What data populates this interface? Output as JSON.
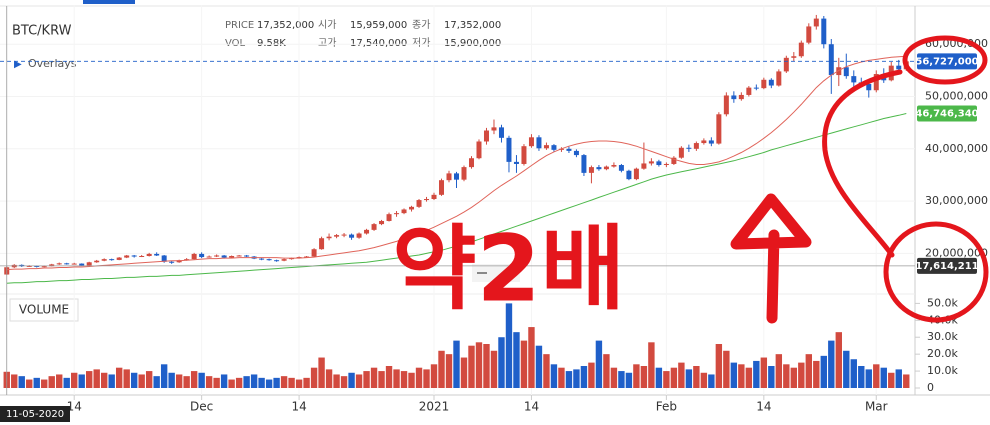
{
  "chart_data": {
    "type": "candlestick",
    "title": "BTC/KRW",
    "info": [
      {
        "label": "PRICE",
        "value": "17,352,000"
      },
      {
        "label": "시가",
        "value": "15,959,000"
      },
      {
        "label": "종가",
        "value": "17,352,000"
      },
      {
        "label": "VOL",
        "value": "9.58K"
      },
      {
        "label": "고가",
        "value": "17,540,000"
      },
      {
        "label": "저가",
        "value": "15,900,000"
      }
    ],
    "overlays_label": "Overlays",
    "volume_label": "VOLUME",
    "annotation": "약2배",
    "up_color": "#d24a3f",
    "down_color": "#1f5fc9",
    "grid": true,
    "categories": [
      null,
      null,
      null,
      null,
      null,
      null,
      null,
      null,
      null,
      "14",
      null,
      null,
      null,
      null,
      null,
      null,
      null,
      null,
      null,
      null,
      null,
      null,
      null,
      null,
      null,
      null,
      "Dec",
      null,
      null,
      null,
      null,
      null,
      null,
      null,
      null,
      null,
      null,
      null,
      null,
      "14",
      null,
      null,
      null,
      null,
      null,
      null,
      null,
      null,
      null,
      null,
      null,
      null,
      null,
      null,
      null,
      null,
      null,
      "2021",
      null,
      null,
      null,
      null,
      null,
      null,
      null,
      null,
      null,
      null,
      null,
      null,
      "14",
      null,
      null,
      null,
      null,
      null,
      null,
      null,
      null,
      null,
      null,
      null,
      null,
      null,
      null,
      null,
      null,
      null,
      "Feb",
      null,
      null,
      null,
      null,
      null,
      null,
      null,
      null,
      null,
      null,
      null,
      null,
      "14",
      null,
      null,
      null,
      null,
      null,
      null,
      null,
      null,
      null,
      null,
      null,
      null,
      null,
      null,
      "Mar",
      null,
      null,
      null,
      null
    ],
    "open": [
      15959000,
      17350000,
      17800000,
      17550000,
      17600000,
      17450000,
      17550000,
      17900000,
      18100000,
      18000000,
      18050000,
      17700000,
      18300000,
      18600000,
      18900000,
      18750000,
      19200000,
      19600000,
      19400000,
      19500000,
      19900000,
      19600000,
      18400000,
      18300000,
      18700000,
      18900000,
      19900000,
      19300000,
      19400000,
      19600000,
      19200000,
      19500000,
      19600000,
      19400000,
      19000000,
      18900000,
      18700000,
      18600000,
      18900000,
      19100000,
      19300000,
      19400000,
      20800000,
      22900000,
      23200000,
      23500000,
      23600000,
      23000000,
      23800000,
      24500000,
      25600000,
      26200000,
      27500000,
      27700000,
      28400000,
      28900000,
      30200000,
      30400000,
      31200000,
      34000000,
      35300000,
      34100000,
      36500000,
      38200000,
      41400000,
      43500000,
      44100000,
      42100000,
      37500000,
      37100000,
      40500000,
      42200000,
      40100000,
      40700000,
      39800000,
      40000000,
      39600000,
      38800000,
      35400000,
      36500000,
      36100000,
      36600000,
      36900000,
      35800000,
      34200000,
      36200000,
      37200000,
      37600000,
      36900000,
      37100000,
      38300000,
      40200000,
      40000000,
      41100000,
      41600000,
      41000000,
      46600000,
      50200000,
      49500000,
      50300000,
      51700000,
      51600000,
      53200000,
      52100000,
      54800000,
      57400000,
      57700000,
      60300000,
      63400000,
      64900000,
      60000000,
      54100000,
      55600000,
      53900000,
      52700000,
      52400000,
      51200000,
      54300000,
      53100000,
      55900000,
      55200000
    ],
    "high": [
      17540000,
      17950000,
      17900000,
      17750000,
      17700000,
      17700000,
      18000000,
      18250000,
      18200000,
      18200000,
      18100000,
      18400000,
      18750000,
      19050000,
      19000000,
      19300000,
      19700000,
      19700000,
      19700000,
      20100000,
      20200000,
      19700000,
      18600000,
      18800000,
      19100000,
      20100000,
      20200000,
      19600000,
      19800000,
      19700000,
      19600000,
      19700000,
      19700000,
      19500000,
      19100000,
      19000000,
      18800000,
      19000000,
      19200000,
      19400000,
      19500000,
      21000000,
      23200000,
      23800000,
      23700000,
      23900000,
      23800000,
      24000000,
      24700000,
      25800000,
      26400000,
      27800000,
      28100000,
      28600000,
      29100000,
      30400000,
      30800000,
      31600000,
      34300000,
      35800000,
      35600000,
      36800000,
      38600000,
      41800000,
      44000000,
      45600000,
      44600000,
      42500000,
      38800000,
      40900000,
      42800000,
      42600000,
      41200000,
      40900000,
      40300000,
      40400000,
      39900000,
      39000000,
      36800000,
      36900000,
      36800000,
      37400000,
      37100000,
      36000000,
      36400000,
      41200000,
      38200000,
      37900000,
      37400000,
      38600000,
      40500000,
      40800000,
      41400000,
      42000000,
      42200000,
      47000000,
      50800000,
      51000000,
      50800000,
      52000000,
      52300000,
      53600000,
      53500000,
      55200000,
      57800000,
      58500000,
      60700000,
      64000000,
      65600000,
      65400000,
      61000000,
      57400000,
      58200000,
      55000000,
      53600000,
      53000000,
      55000000,
      55400000,
      56600000,
      57000000,
      57100000
    ],
    "low": [
      15900000,
      17200000,
      17400000,
      17400000,
      17300000,
      17350000,
      17500000,
      17800000,
      17850000,
      17900000,
      17600000,
      17650000,
      18200000,
      18500000,
      18600000,
      18700000,
      19100000,
      19200000,
      19300000,
      19400000,
      19500000,
      18200000,
      18000000,
      18200000,
      18600000,
      18800000,
      19100000,
      19200000,
      19300000,
      19000000,
      19100000,
      19400000,
      19300000,
      18900000,
      18700000,
      18600000,
      18400000,
      18500000,
      18800000,
      19000000,
      19200000,
      19300000,
      20700000,
      22500000,
      22900000,
      23100000,
      22600000,
      22800000,
      23600000,
      24300000,
      25400000,
      26100000,
      27000000,
      27500000,
      28000000,
      28700000,
      29900000,
      30200000,
      31000000,
      33600000,
      32500000,
      33800000,
      36200000,
      38000000,
      40800000,
      42800000,
      41200000,
      35500000,
      35400000,
      36800000,
      40200000,
      39600000,
      39800000,
      39400000,
      39400000,
      39200000,
      38400000,
      34800000,
      33400000,
      35800000,
      35900000,
      36400000,
      35500000,
      34000000,
      34000000,
      36000000,
      36800000,
      36600000,
      36500000,
      36900000,
      38100000,
      39400000,
      39600000,
      40800000,
      40500000,
      40800000,
      46200000,
      48800000,
      49200000,
      50000000,
      51200000,
      51400000,
      51600000,
      51900000,
      54500000,
      56800000,
      57400000,
      60000000,
      62800000,
      59200000,
      50500000,
      52000000,
      53400000,
      51600000,
      51800000,
      49800000,
      50800000,
      52600000,
      52900000,
      54800000,
      54900000
    ],
    "close": [
      17352000,
      17800000,
      17550000,
      17600000,
      17450000,
      17550000,
      17900000,
      18100000,
      18000000,
      18050000,
      17700000,
      18300000,
      18600000,
      18900000,
      18750000,
      19200000,
      19600000,
      19400000,
      19500000,
      19900000,
      19600000,
      18400000,
      18300000,
      18700000,
      18900000,
      19900000,
      19300000,
      19400000,
      19600000,
      19200000,
      19500000,
      19600000,
      19400000,
      19000000,
      18900000,
      18700000,
      18600000,
      18900000,
      19100000,
      19300000,
      19400000,
      20800000,
      22900000,
      23200000,
      23500000,
      23600000,
      23000000,
      23800000,
      24500000,
      25600000,
      26200000,
      27500000,
      27700000,
      28400000,
      28900000,
      30200000,
      30400000,
      31200000,
      34000000,
      35300000,
      34100000,
      36500000,
      38200000,
      41400000,
      43500000,
      44100000,
      42100000,
      37500000,
      37100000,
      40500000,
      42200000,
      40100000,
      40700000,
      39800000,
      40000000,
      39600000,
      38800000,
      35400000,
      36500000,
      36100000,
      36600000,
      36900000,
      35800000,
      34200000,
      36200000,
      37200000,
      37600000,
      36900000,
      37100000,
      38300000,
      40200000,
      40000000,
      41100000,
      41600000,
      41000000,
      46600000,
      50200000,
      49500000,
      50300000,
      51700000,
      51600000,
      53200000,
      52100000,
      54800000,
      57400000,
      57700000,
      60300000,
      63400000,
      64900000,
      60000000,
      54100000,
      55600000,
      53900000,
      52700000,
      52400000,
      51200000,
      54300000,
      53100000,
      55900000,
      55200000,
      56727000
    ],
    "volume": [
      9580,
      8000,
      7000,
      5000,
      6000,
      5000,
      7000,
      8000,
      6000,
      9000,
      8000,
      10000,
      11000,
      9000,
      8000,
      12000,
      11000,
      9000,
      8000,
      10000,
      7000,
      14000,
      9000,
      8000,
      7000,
      10000,
      9000,
      7000,
      6000,
      8000,
      5000,
      6000,
      7000,
      8000,
      6000,
      5000,
      6000,
      7000,
      6000,
      5000,
      6000,
      12000,
      18000,
      11000,
      8000,
      7000,
      9000,
      8000,
      10000,
      12000,
      10000,
      13000,
      11000,
      10000,
      9000,
      12000,
      11000,
      14000,
      22000,
      20000,
      28000,
      18000,
      25000,
      27000,
      26000,
      22000,
      30000,
      50000,
      33000,
      28000,
      36000,
      25000,
      20000,
      14000,
      12000,
      10000,
      11000,
      13000,
      15000,
      28000,
      20000,
      12000,
      10000,
      9000,
      14000,
      13000,
      27000,
      12000,
      10000,
      12000,
      15000,
      11000,
      13000,
      9000,
      8000,
      26000,
      22000,
      15000,
      14000,
      12000,
      16000,
      18000,
      13000,
      20000,
      14000,
      12000,
      15000,
      20000,
      16000,
      19000,
      28000,
      33000,
      22000,
      17000,
      13000,
      11000,
      14000,
      12000,
      9000,
      11000,
      8000
    ],
    "series": [
      {
        "color": "#e0645a",
        "values": [
          16900000,
          17000000,
          17000000,
          17100000,
          17100000,
          17200000,
          17200000,
          17300000,
          17300000,
          17400000,
          17400000,
          17500000,
          17600000,
          17700000,
          17800000,
          17900000,
          18000000,
          18100000,
          18200000,
          18300000,
          18400000,
          18500000,
          18600000,
          18600000,
          18700000,
          18800000,
          18900000,
          19000000,
          19000000,
          19100000,
          19100000,
          19200000,
          19200000,
          19200000,
          19200000,
          19200000,
          19200000,
          19100000,
          19100000,
          19100000,
          19200000,
          19300000,
          19500000,
          19700000,
          19900000,
          20100000,
          20300000,
          20500000,
          20800000,
          21100000,
          21500000,
          21900000,
          22300000,
          22800000,
          23300000,
          23800000,
          24400000,
          25000000,
          25700000,
          26400000,
          27100000,
          27900000,
          28800000,
          29800000,
          30900000,
          32000000,
          33000000,
          33900000,
          34800000,
          35800000,
          36800000,
          37800000,
          38700000,
          39400000,
          40000000,
          40500000,
          40900000,
          41200000,
          41400000,
          41500000,
          41500000,
          41400000,
          41200000,
          40900000,
          40500000,
          40000000,
          39500000,
          39000000,
          38500000,
          38000000,
          37600000,
          37200000,
          37000000,
          37000000,
          37200000,
          37500000,
          38000000,
          38600000,
          39300000,
          40100000,
          41000000,
          42000000,
          43100000,
          44300000,
          45600000,
          47000000,
          48500000,
          50100000,
          51700000,
          53000000,
          54100000,
          55000000,
          55700000,
          56200000,
          56600000,
          56900000,
          57100000,
          57300000,
          57500000,
          57600000,
          57700000
        ]
      },
      {
        "color": "#4cb84a",
        "values": [
          14300000,
          14400000,
          14400000,
          14500000,
          14600000,
          14600000,
          14700000,
          14800000,
          14800000,
          14900000,
          15000000,
          15000000,
          15100000,
          15200000,
          15200000,
          15300000,
          15400000,
          15400000,
          15500000,
          15600000,
          15600000,
          15700000,
          15800000,
          15800000,
          15900000,
          16000000,
          16100000,
          16200000,
          16300000,
          16400000,
          16500000,
          16600000,
          16700000,
          16800000,
          16900000,
          17000000,
          17100000,
          17200000,
          17300000,
          17400000,
          17500000,
          17600000,
          17700000,
          17800000,
          17900000,
          18000000,
          18100000,
          18200000,
          18300000,
          18500000,
          18700000,
          18900000,
          19100000,
          19300000,
          19500000,
          19700000,
          20000000,
          20300000,
          20600000,
          21000000,
          21400000,
          21800000,
          22200000,
          22700000,
          23200000,
          23700000,
          24200000,
          24700000,
          25200000,
          25700000,
          26200000,
          26700000,
          27200000,
          27700000,
          28200000,
          28700000,
          29200000,
          29700000,
          30200000,
          30700000,
          31200000,
          31700000,
          32200000,
          32700000,
          33200000,
          33700000,
          34200000,
          34600000,
          35000000,
          35300000,
          35600000,
          35900000,
          36200000,
          36500000,
          36800000,
          37100000,
          37400000,
          37700000,
          38100000,
          38500000,
          38900000,
          39300000,
          39800000,
          40200000,
          40600000,
          41000000,
          41400000,
          41800000,
          42200000,
          42600000,
          43000000,
          43400000,
          43800000,
          44200000,
          44600000,
          45000000,
          45400000,
          45800000,
          46100000,
          46400000,
          46746340
        ]
      }
    ],
    "ylim": [
      13000000,
      67500000
    ],
    "yticks": [
      {
        "value": 20000000,
        "label": "20,000,000"
      },
      {
        "value": 30000000,
        "label": "30,000,000"
      },
      {
        "value": 40000000,
        "label": "40,000,000"
      },
      {
        "value": 50000000,
        "label": "50,000,000"
      },
      {
        "value": 60000000,
        "label": "60,000,000"
      }
    ],
    "volume_ylim": [
      0,
      52000
    ],
    "volume_ticks": [
      0,
      {
        "value": 10000,
        "label": "10.0k"
      },
      {
        "value": 20000,
        "label": "20.0k"
      },
      {
        "value": 30000,
        "label": "30.0k"
      },
      {
        "value": 40000,
        "label": "40.0k"
      },
      {
        "value": 50000,
        "label": "50.0k"
      }
    ],
    "price_tags": [
      {
        "value": 56727000,
        "label": "56,727,000",
        "color": "#1f5fc9"
      },
      {
        "value": 46746340,
        "label": "46,746,340",
        "color": "#4cb84a"
      },
      {
        "value": 17614211,
        "label": "17,614,211",
        "color": "#333333"
      }
    ],
    "crosshair_date": "11-05-2020"
  }
}
